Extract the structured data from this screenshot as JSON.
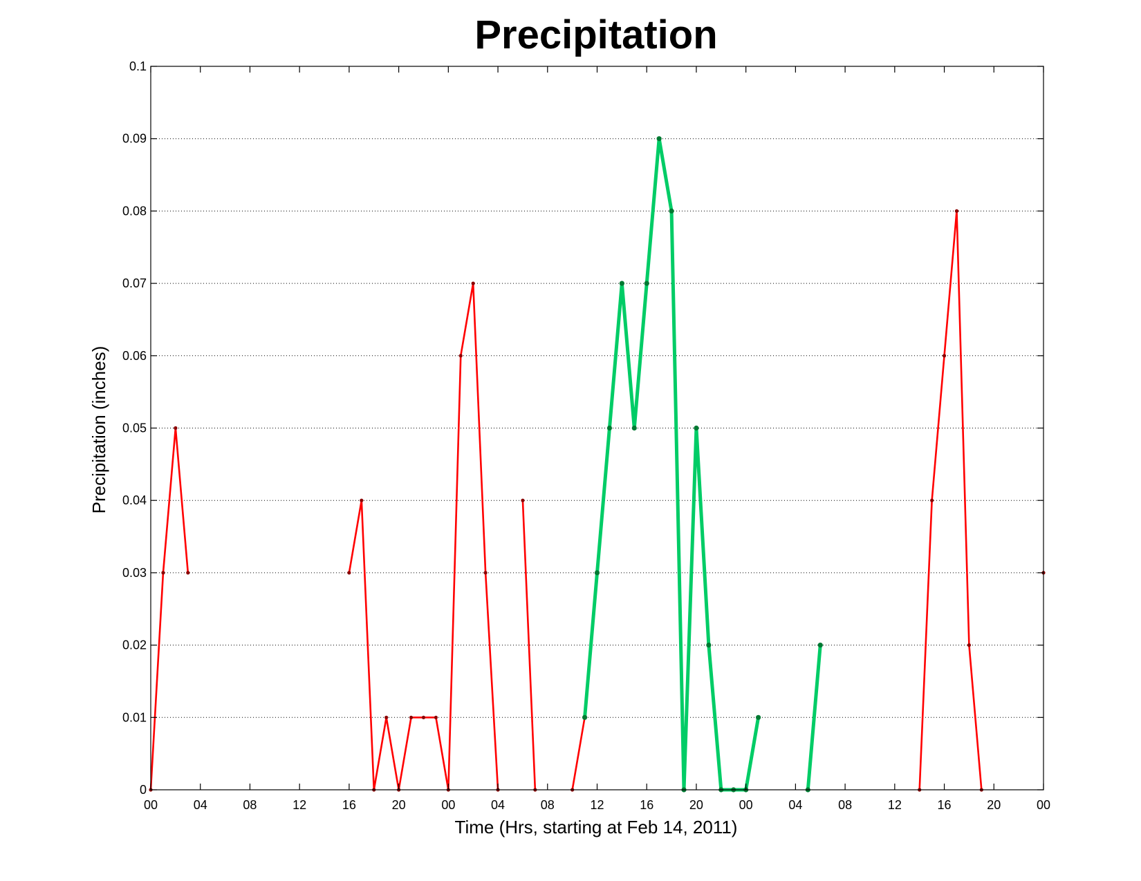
{
  "chart_data": {
    "type": "line",
    "title": "Precipitation",
    "xlabel": "Time (Hrs, starting at Feb 14, 2011)",
    "ylabel": "Precipitation (inches)",
    "xlim": [
      0,
      72
    ],
    "ylim": [
      0,
      0.1
    ],
    "grid": true,
    "x_ticks": [
      0,
      4,
      8,
      12,
      16,
      20,
      24,
      28,
      32,
      36,
      40,
      44,
      48,
      52,
      56,
      60,
      64,
      68,
      72
    ],
    "x_tick_labels": [
      "00",
      "04",
      "08",
      "12",
      "16",
      "20",
      "00",
      "04",
      "08",
      "12",
      "16",
      "20",
      "00",
      "04",
      "08",
      "12",
      "16",
      "20",
      "00"
    ],
    "y_ticks": [
      0,
      0.01,
      0.02,
      0.03,
      0.04,
      0.05,
      0.06,
      0.07,
      0.08,
      0.09,
      0.1
    ],
    "y_tick_labels": [
      "0",
      "0.01",
      "0.02",
      "0.03",
      "0.04",
      "0.05",
      "0.06",
      "0.07",
      "0.08",
      "0.09",
      "0.1"
    ],
    "series": [
      {
        "color": "#ff0000",
        "marker_color": "#8b0000",
        "line_width": "thin",
        "segments": [
          [
            [
              0,
              0
            ],
            [
              1,
              0.03
            ],
            [
              2,
              0.05
            ],
            [
              3,
              0.03
            ]
          ],
          [
            [
              16,
              0.03
            ],
            [
              17,
              0.04
            ],
            [
              18,
              0
            ],
            [
              19,
              0.01
            ],
            [
              20,
              0
            ],
            [
              21,
              0.01
            ],
            [
              22,
              0.01
            ],
            [
              23,
              0.01
            ],
            [
              24,
              0
            ],
            [
              25,
              0.06
            ],
            [
              26,
              0.07
            ],
            [
              27,
              0.03
            ],
            [
              28,
              0
            ]
          ],
          [
            [
              30,
              0.04
            ],
            [
              31,
              0
            ]
          ],
          [
            [
              34,
              0
            ],
            [
              35,
              0.01
            ]
          ],
          [
            [
              62,
              0
            ],
            [
              63,
              0.04
            ],
            [
              64,
              0.06
            ],
            [
              65,
              0.08
            ],
            [
              66,
              0.02
            ],
            [
              67,
              0
            ]
          ],
          [
            [
              72,
              0.03
            ]
          ]
        ]
      },
      {
        "color": "#00cc66",
        "marker_color": "#007a33",
        "line_width": "thick",
        "segments": [
          [
            [
              35,
              0.01
            ],
            [
              36,
              0.03
            ],
            [
              37,
              0.05
            ],
            [
              38,
              0.07
            ],
            [
              39,
              0.05
            ],
            [
              40,
              0.07
            ],
            [
              41,
              0.09
            ],
            [
              42,
              0.08
            ],
            [
              43,
              0
            ],
            [
              44,
              0.05
            ],
            [
              45,
              0.02
            ],
            [
              46,
              0
            ],
            [
              47,
              0
            ],
            [
              48,
              0
            ],
            [
              49,
              0.01
            ]
          ],
          [
            [
              53,
              0
            ],
            [
              54,
              0.02
            ]
          ]
        ]
      }
    ]
  }
}
